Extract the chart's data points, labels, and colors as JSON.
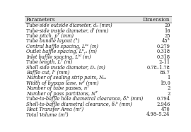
{
  "title": "Parameters",
  "col2_title": "Dimension",
  "rows": [
    [
      "Tube-side outside diameter, dₒ (mm)",
      "20"
    ],
    [
      "Tube-side inside diameter, dᴵ (mm)",
      "16"
    ],
    [
      "Tube pitch, pᵀ (mm)",
      "25"
    ],
    [
      "Tube bundle layout (°)",
      "45°"
    ],
    [
      "Central baffle spacing, Lᵇᶜ (m)",
      "0.279"
    ],
    [
      "Outlet baffle spacing, Lᵇ,ₒ (m)",
      "0.318"
    ],
    [
      "Inlet baffle spacing, Lᵇᴵ (m)",
      "0.318"
    ],
    [
      "Tube length, Lᵀ (m)",
      "2–11"
    ],
    [
      "Shell side inside diameter, Dₛ (m)",
      "0.78–1.78"
    ],
    [
      "Baffle cut, lᶜ (mm)",
      "86.7"
    ],
    [
      "Number of sealing strip pairs, Nₛₛ",
      "1"
    ],
    [
      "Width of bypass lane, wᵇ (mm)",
      "19.0"
    ],
    [
      "Number of tube passes, nᵀ",
      "2"
    ],
    [
      "Number of pass partitions, Nᵀ",
      "2"
    ],
    [
      "Tube-to-baffle hole diametral clearance, δₜᵇ (mm)",
      "0.794"
    ],
    [
      "Shell-to-baffle diametral clearance, δₛᵇ (mm)",
      "2.946"
    ],
    [
      "Heat Transfer Area (m²)",
      "470"
    ],
    [
      "Total Volume (m³)",
      "4.98–5.24"
    ]
  ],
  "header_bg": "#e8e8e8",
  "row_bg": "#ffffff",
  "text_color": "#1a1a1a",
  "line_color": "#888888",
  "font_size": 4.8,
  "header_font_size": 5.2,
  "fig_width": 2.7,
  "fig_height": 1.87,
  "dpi": 100
}
